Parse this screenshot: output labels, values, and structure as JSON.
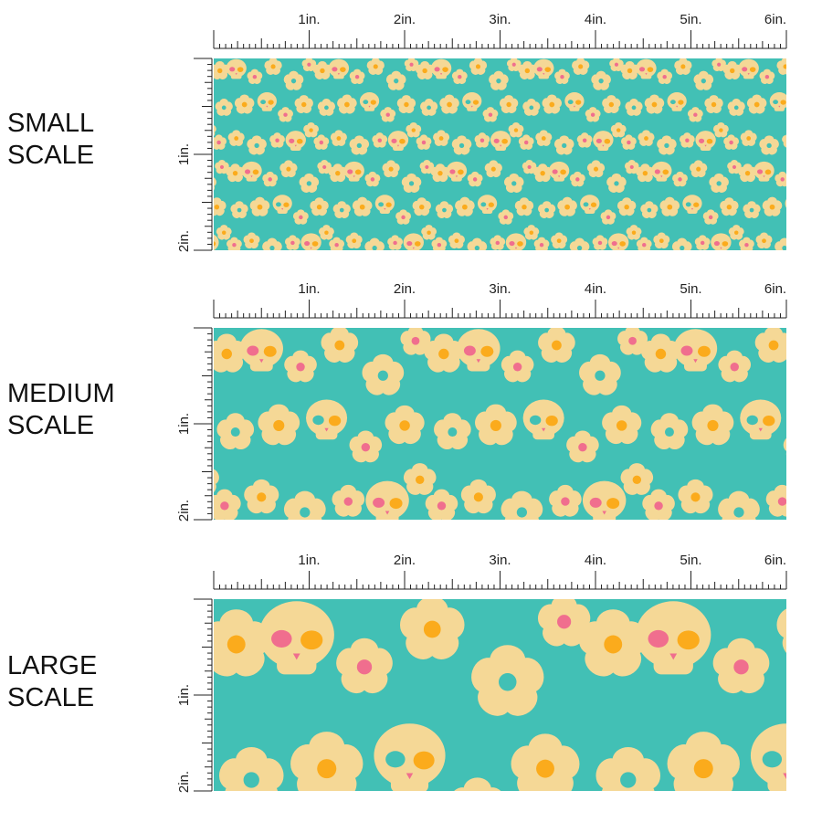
{
  "ruler": {
    "top_labels": [
      "1in.",
      "2in.",
      "3in.",
      "4in.",
      "5in.",
      "6in."
    ],
    "side_labels": [
      "1in.",
      "2in."
    ]
  },
  "sections": [
    {
      "id": "small",
      "line1": "SMALL",
      "line2": "SCALE",
      "scale": 0.34
    },
    {
      "id": "medium",
      "line1": "MEDIUM",
      "line2": "SCALE",
      "scale": 0.72
    },
    {
      "id": "large",
      "line1": "LARGE",
      "line2": "SCALE",
      "scale": 1.25
    }
  ],
  "colors": {
    "background": "#42c0b5",
    "petal": "#f5d896",
    "pink": "#f06e8e",
    "orange": "#fbab1c",
    "ruler": "#222222"
  }
}
